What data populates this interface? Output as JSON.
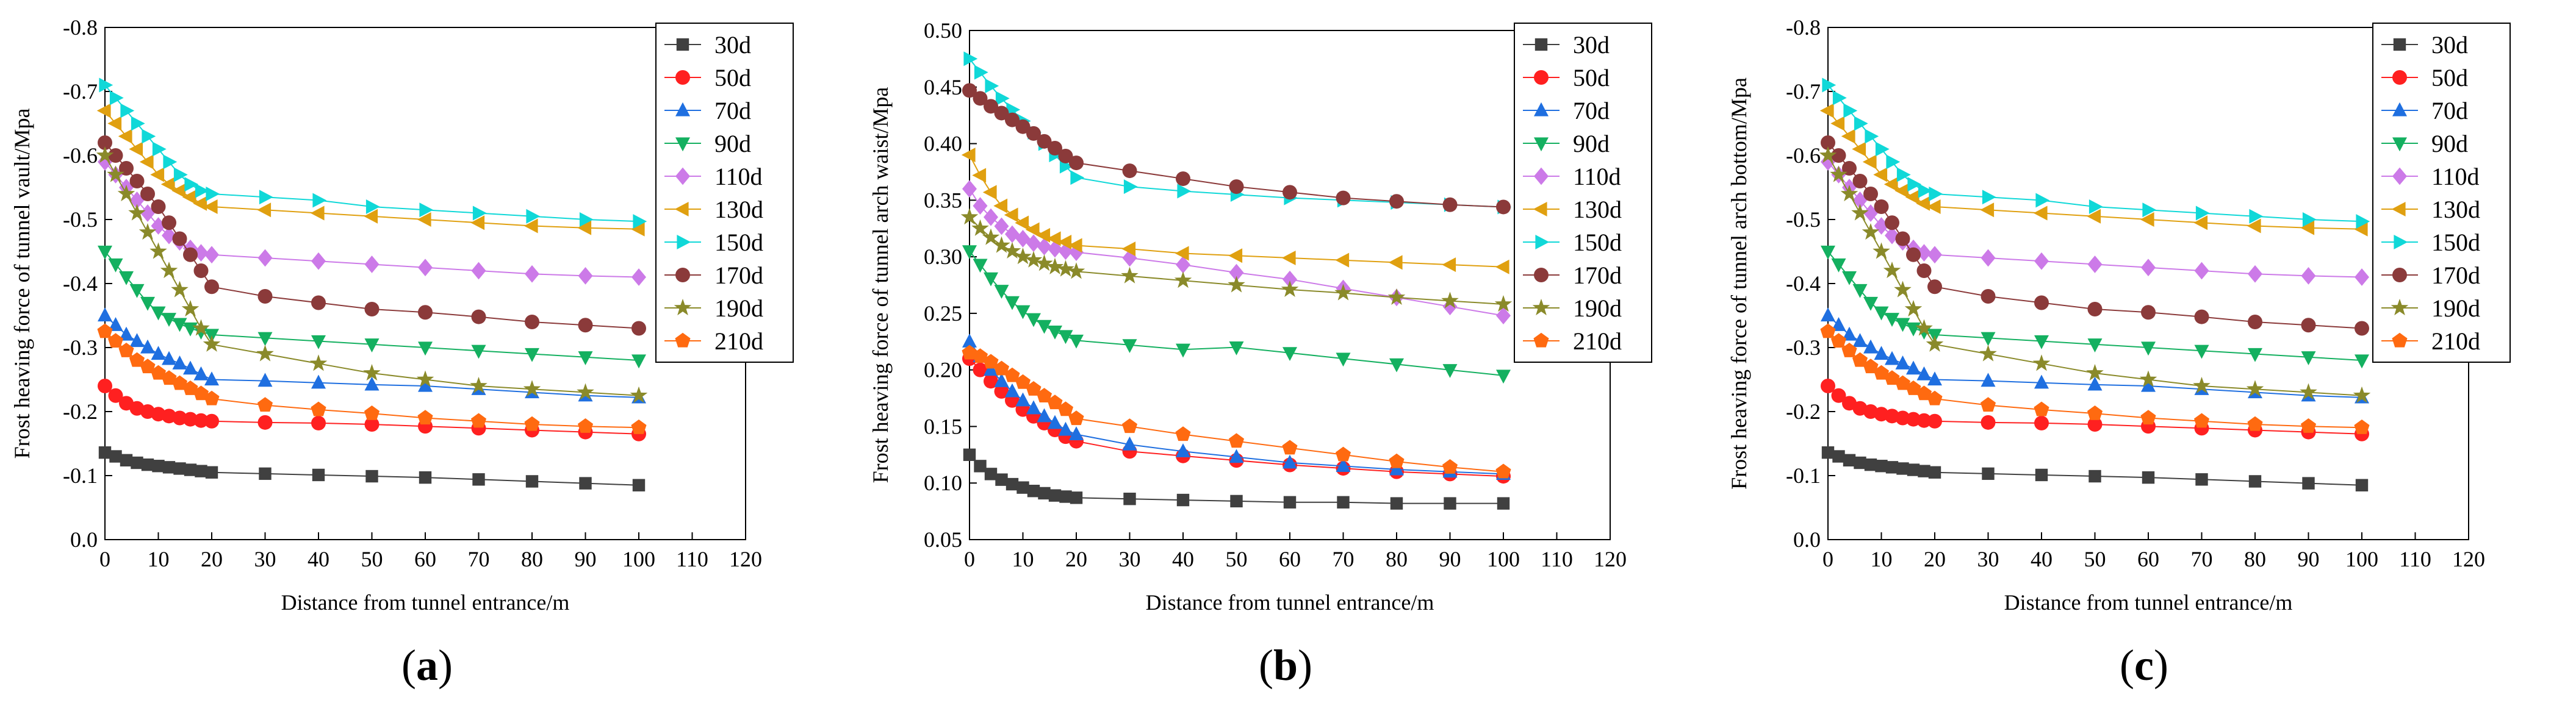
{
  "figure": {
    "panels": [
      {
        "caption_open": "(",
        "caption_letter": "a",
        "caption_close": ")"
      },
      {
        "caption_open": "(",
        "caption_letter": "b",
        "caption_close": ")"
      },
      {
        "caption_open": "(",
        "caption_letter": "c",
        "caption_close": ")"
      }
    ]
  },
  "chart_data": [
    {
      "type": "line",
      "title": "",
      "xlabel": "Distance from tunnel entrance/m",
      "ylabel": "Frost heaving force of tunnel vault/Mpa",
      "xlim": [
        0,
        120
      ],
      "ylim": [
        0,
        -0.8
      ],
      "xticks": [
        0,
        10,
        20,
        30,
        40,
        50,
        60,
        70,
        80,
        90,
        100,
        110,
        120
      ],
      "xtick_labels": [
        "0",
        "10",
        "20",
        "30",
        "40",
        "50",
        "60",
        "70",
        "80",
        "90",
        "100",
        "110",
        "120"
      ],
      "yticks": [
        0,
        -0.1,
        -0.2,
        -0.3,
        -0.4,
        -0.5,
        -0.6,
        -0.7,
        -0.8
      ],
      "ytick_labels": [
        "0.0",
        "-0.1",
        "-0.2",
        "-0.3",
        "-0.4",
        "-0.5",
        "-0.6",
        "-0.7",
        "-0.8"
      ],
      "legend_position": "top-right",
      "x": [
        0,
        2,
        4,
        6,
        8,
        10,
        12,
        14,
        16,
        18,
        20,
        30,
        40,
        50,
        60,
        70,
        80,
        90,
        100
      ],
      "series": [
        {
          "name": "30d",
          "marker": "square",
          "color": "#404040",
          "values": [
            -0.136,
            -0.13,
            -0.124,
            -0.12,
            -0.117,
            -0.115,
            -0.113,
            -0.111,
            -0.109,
            -0.107,
            -0.105,
            -0.103,
            -0.101,
            -0.099,
            -0.097,
            -0.094,
            -0.091,
            -0.088,
            -0.085
          ]
        },
        {
          "name": "50d",
          "marker": "circle",
          "color": "#ff2020",
          "values": [
            -0.24,
            -0.225,
            -0.213,
            -0.205,
            -0.2,
            -0.196,
            -0.193,
            -0.19,
            -0.188,
            -0.186,
            -0.185,
            -0.183,
            -0.182,
            -0.18,
            -0.177,
            -0.174,
            -0.171,
            -0.168,
            -0.165
          ]
        },
        {
          "name": "70d",
          "marker": "triangle-up",
          "color": "#1f6fe0",
          "values": [
            -0.35,
            -0.335,
            -0.32,
            -0.31,
            -0.3,
            -0.29,
            -0.282,
            -0.275,
            -0.267,
            -0.258,
            -0.25,
            -0.248,
            -0.245,
            -0.242,
            -0.24,
            -0.235,
            -0.23,
            -0.225,
            -0.222
          ]
        },
        {
          "name": "90d",
          "marker": "triangle-down",
          "color": "#14b060",
          "values": [
            -0.45,
            -0.43,
            -0.41,
            -0.39,
            -0.37,
            -0.355,
            -0.345,
            -0.337,
            -0.33,
            -0.325,
            -0.32,
            -0.315,
            -0.31,
            -0.305,
            -0.3,
            -0.295,
            -0.29,
            -0.285,
            -0.28
          ]
        },
        {
          "name": "110d",
          "marker": "diamond",
          "color": "#cc7ae8",
          "values": [
            -0.59,
            -0.57,
            -0.55,
            -0.53,
            -0.51,
            -0.49,
            -0.475,
            -0.465,
            -0.455,
            -0.448,
            -0.445,
            -0.44,
            -0.435,
            -0.43,
            -0.425,
            -0.42,
            -0.415,
            -0.412,
            -0.41
          ]
        },
        {
          "name": "130d",
          "marker": "triangle-left",
          "color": "#e0a010",
          "values": [
            -0.67,
            -0.65,
            -0.63,
            -0.61,
            -0.59,
            -0.57,
            -0.555,
            -0.545,
            -0.535,
            -0.525,
            -0.52,
            -0.515,
            -0.51,
            -0.505,
            -0.5,
            -0.495,
            -0.49,
            -0.487,
            -0.485
          ]
        },
        {
          "name": "150d",
          "marker": "triangle-right",
          "color": "#10d8d8",
          "values": [
            -0.71,
            -0.69,
            -0.67,
            -0.65,
            -0.63,
            -0.61,
            -0.59,
            -0.57,
            -0.555,
            -0.545,
            -0.54,
            -0.535,
            -0.53,
            -0.52,
            -0.515,
            -0.51,
            -0.505,
            -0.5,
            -0.497
          ]
        },
        {
          "name": "170d",
          "marker": "circle",
          "color": "#8b3a3a",
          "values": [
            -0.62,
            -0.6,
            -0.58,
            -0.56,
            -0.54,
            -0.52,
            -0.495,
            -0.47,
            -0.445,
            -0.42,
            -0.395,
            -0.38,
            -0.37,
            -0.36,
            -0.355,
            -0.348,
            -0.34,
            -0.335,
            -0.33
          ]
        },
        {
          "name": "190d",
          "marker": "star",
          "color": "#8a8a2a",
          "values": [
            -0.6,
            -0.57,
            -0.54,
            -0.51,
            -0.48,
            -0.45,
            -0.42,
            -0.39,
            -0.36,
            -0.33,
            -0.305,
            -0.29,
            -0.275,
            -0.26,
            -0.25,
            -0.24,
            -0.235,
            -0.23,
            -0.225
          ]
        },
        {
          "name": "210d",
          "marker": "pentagon",
          "color": "#ff6a10",
          "values": [
            -0.325,
            -0.31,
            -0.295,
            -0.28,
            -0.27,
            -0.26,
            -0.252,
            -0.244,
            -0.236,
            -0.228,
            -0.22,
            -0.21,
            -0.203,
            -0.197,
            -0.19,
            -0.185,
            -0.18,
            -0.177,
            -0.175
          ]
        }
      ]
    },
    {
      "type": "line",
      "title": "",
      "xlabel": "Distance from tunnel entrance/m",
      "ylabel": "Frost heaving force of tunnel arch waist/Mpa",
      "xlim": [
        0,
        120
      ],
      "ylim": [
        0.05,
        0.5
      ],
      "xticks": [
        0,
        10,
        20,
        30,
        40,
        50,
        60,
        70,
        80,
        90,
        100,
        110,
        120
      ],
      "xtick_labels": [
        "0",
        "10",
        "20",
        "30",
        "40",
        "50",
        "60",
        "70",
        "80",
        "90",
        "100",
        "110",
        "120"
      ],
      "yticks": [
        0.05,
        0.1,
        0.15,
        0.2,
        0.25,
        0.3,
        0.35,
        0.4,
        0.45,
        0.5
      ],
      "ytick_labels": [
        "0.05",
        "0.10",
        "0.15",
        "0.20",
        "0.25",
        "0.30",
        "0.35",
        "0.40",
        "0.45",
        "0.50"
      ],
      "legend_position": "top-right",
      "x": [
        0,
        2,
        4,
        6,
        8,
        10,
        12,
        14,
        16,
        18,
        20,
        30,
        40,
        50,
        60,
        70,
        80,
        90,
        100
      ],
      "series": [
        {
          "name": "30d",
          "marker": "square",
          "color": "#404040",
          "values": [
            0.125,
            0.115,
            0.108,
            0.103,
            0.099,
            0.096,
            0.093,
            0.091,
            0.089,
            0.088,
            0.087,
            0.086,
            0.085,
            0.084,
            0.083,
            0.083,
            0.082,
            0.082,
            0.082
          ]
        },
        {
          "name": "50d",
          "marker": "circle",
          "color": "#ff2020",
          "values": [
            0.21,
            0.2,
            0.19,
            0.181,
            0.173,
            0.165,
            0.159,
            0.153,
            0.147,
            0.141,
            0.137,
            0.128,
            0.124,
            0.12,
            0.116,
            0.113,
            0.11,
            0.108,
            0.106
          ]
        },
        {
          "name": "70d",
          "marker": "triangle-up",
          "color": "#1f6fe0",
          "values": [
            0.225,
            0.212,
            0.2,
            0.19,
            0.181,
            0.173,
            0.166,
            0.159,
            0.153,
            0.147,
            0.143,
            0.134,
            0.128,
            0.123,
            0.118,
            0.115,
            0.112,
            0.11,
            0.108
          ]
        },
        {
          "name": "90d",
          "marker": "triangle-down",
          "color": "#14b060",
          "values": [
            0.305,
            0.293,
            0.281,
            0.27,
            0.26,
            0.252,
            0.245,
            0.239,
            0.234,
            0.23,
            0.226,
            0.222,
            0.218,
            0.22,
            0.215,
            0.21,
            0.205,
            0.2,
            0.195
          ]
        },
        {
          "name": "110d",
          "marker": "diamond",
          "color": "#cc7ae8",
          "values": [
            0.36,
            0.345,
            0.335,
            0.327,
            0.32,
            0.316,
            0.312,
            0.309,
            0.307,
            0.305,
            0.304,
            0.299,
            0.293,
            0.286,
            0.28,
            0.272,
            0.264,
            0.256,
            0.248
          ]
        },
        {
          "name": "130d",
          "marker": "triangle-left",
          "color": "#e0a010",
          "values": [
            0.39,
            0.372,
            0.357,
            0.345,
            0.337,
            0.33,
            0.324,
            0.319,
            0.316,
            0.313,
            0.31,
            0.307,
            0.303,
            0.301,
            0.299,
            0.297,
            0.295,
            0.293,
            0.291
          ]
        },
        {
          "name": "150d",
          "marker": "triangle-right",
          "color": "#10d8d8",
          "values": [
            0.475,
            0.463,
            0.451,
            0.44,
            0.43,
            0.42,
            0.41,
            0.4,
            0.39,
            0.38,
            0.37,
            0.362,
            0.358,
            0.355,
            0.352,
            0.35,
            0.348,
            0.346,
            0.344
          ]
        },
        {
          "name": "170d",
          "marker": "circle",
          "color": "#8b3a3a",
          "values": [
            0.447,
            0.44,
            0.433,
            0.427,
            0.421,
            0.415,
            0.409,
            0.402,
            0.396,
            0.389,
            0.383,
            0.376,
            0.369,
            0.362,
            0.357,
            0.352,
            0.349,
            0.346,
            0.344
          ]
        },
        {
          "name": "190d",
          "marker": "star",
          "color": "#8a8a2a",
          "values": [
            0.335,
            0.325,
            0.317,
            0.31,
            0.305,
            0.3,
            0.297,
            0.294,
            0.291,
            0.289,
            0.287,
            0.283,
            0.279,
            0.275,
            0.271,
            0.268,
            0.264,
            0.261,
            0.258
          ]
        },
        {
          "name": "210d",
          "marker": "pentagon",
          "color": "#ff6a10",
          "values": [
            0.215,
            0.212,
            0.207,
            0.201,
            0.195,
            0.189,
            0.183,
            0.177,
            0.171,
            0.165,
            0.157,
            0.15,
            0.143,
            0.137,
            0.131,
            0.125,
            0.119,
            0.114,
            0.11
          ]
        }
      ]
    },
    {
      "type": "line",
      "title": "",
      "xlabel": "Distance from tunnel entrance/m",
      "ylabel": "Frost heaving force of tunnel arch bottom/Mpa",
      "xlim": [
        0,
        120
      ],
      "ylim": [
        0,
        -0.8
      ],
      "xticks": [
        0,
        10,
        20,
        30,
        40,
        50,
        60,
        70,
        80,
        90,
        100,
        110,
        120
      ],
      "xtick_labels": [
        "0",
        "10",
        "20",
        "30",
        "40",
        "50",
        "60",
        "70",
        "80",
        "90",
        "100",
        "110",
        "120"
      ],
      "yticks": [
        0,
        -0.1,
        -0.2,
        -0.3,
        -0.4,
        -0.5,
        -0.6,
        -0.7,
        -0.8
      ],
      "ytick_labels": [
        "0.0",
        "-0.1",
        "-0.2",
        "-0.3",
        "-0.4",
        "-0.5",
        "-0.6",
        "-0.7",
        "-0.8"
      ],
      "legend_position": "top-right",
      "x": [
        0,
        2,
        4,
        6,
        8,
        10,
        12,
        14,
        16,
        18,
        20,
        30,
        40,
        50,
        60,
        70,
        80,
        90,
        100
      ],
      "series": [
        {
          "name": "30d",
          "marker": "square",
          "color": "#404040",
          "values": [
            -0.136,
            -0.13,
            -0.124,
            -0.12,
            -0.117,
            -0.115,
            -0.113,
            -0.111,
            -0.109,
            -0.107,
            -0.105,
            -0.103,
            -0.101,
            -0.099,
            -0.097,
            -0.094,
            -0.091,
            -0.088,
            -0.085
          ]
        },
        {
          "name": "50d",
          "marker": "circle",
          "color": "#ff2020",
          "values": [
            -0.24,
            -0.225,
            -0.213,
            -0.205,
            -0.2,
            -0.196,
            -0.193,
            -0.19,
            -0.188,
            -0.186,
            -0.185,
            -0.183,
            -0.182,
            -0.18,
            -0.177,
            -0.174,
            -0.171,
            -0.168,
            -0.165
          ]
        },
        {
          "name": "70d",
          "marker": "triangle-up",
          "color": "#1f6fe0",
          "values": [
            -0.35,
            -0.335,
            -0.32,
            -0.31,
            -0.3,
            -0.29,
            -0.282,
            -0.275,
            -0.267,
            -0.258,
            -0.25,
            -0.248,
            -0.245,
            -0.242,
            -0.24,
            -0.235,
            -0.23,
            -0.225,
            -0.222
          ]
        },
        {
          "name": "90d",
          "marker": "triangle-down",
          "color": "#14b060",
          "values": [
            -0.45,
            -0.43,
            -0.41,
            -0.39,
            -0.37,
            -0.355,
            -0.345,
            -0.337,
            -0.33,
            -0.325,
            -0.32,
            -0.315,
            -0.31,
            -0.305,
            -0.3,
            -0.295,
            -0.29,
            -0.285,
            -0.28
          ]
        },
        {
          "name": "110d",
          "marker": "diamond",
          "color": "#cc7ae8",
          "values": [
            -0.59,
            -0.57,
            -0.55,
            -0.53,
            -0.51,
            -0.49,
            -0.475,
            -0.465,
            -0.455,
            -0.448,
            -0.445,
            -0.44,
            -0.435,
            -0.43,
            -0.425,
            -0.42,
            -0.415,
            -0.412,
            -0.41
          ]
        },
        {
          "name": "130d",
          "marker": "triangle-left",
          "color": "#e0a010",
          "values": [
            -0.67,
            -0.65,
            -0.63,
            -0.61,
            -0.59,
            -0.57,
            -0.555,
            -0.545,
            -0.535,
            -0.525,
            -0.52,
            -0.515,
            -0.51,
            -0.505,
            -0.5,
            -0.495,
            -0.49,
            -0.487,
            -0.485
          ]
        },
        {
          "name": "150d",
          "marker": "triangle-right",
          "color": "#10d8d8",
          "values": [
            -0.71,
            -0.69,
            -0.67,
            -0.65,
            -0.63,
            -0.61,
            -0.59,
            -0.57,
            -0.555,
            -0.545,
            -0.54,
            -0.535,
            -0.53,
            -0.52,
            -0.515,
            -0.51,
            -0.505,
            -0.5,
            -0.497
          ]
        },
        {
          "name": "170d",
          "marker": "circle",
          "color": "#8b3a3a",
          "values": [
            -0.62,
            -0.6,
            -0.58,
            -0.56,
            -0.54,
            -0.52,
            -0.495,
            -0.47,
            -0.445,
            -0.42,
            -0.395,
            -0.38,
            -0.37,
            -0.36,
            -0.355,
            -0.348,
            -0.34,
            -0.335,
            -0.33
          ]
        },
        {
          "name": "190d",
          "marker": "star",
          "color": "#8a8a2a",
          "values": [
            -0.6,
            -0.57,
            -0.54,
            -0.51,
            -0.48,
            -0.45,
            -0.42,
            -0.39,
            -0.36,
            -0.33,
            -0.305,
            -0.29,
            -0.275,
            -0.26,
            -0.25,
            -0.24,
            -0.235,
            -0.23,
            -0.225
          ]
        },
        {
          "name": "210d",
          "marker": "pentagon",
          "color": "#ff6a10",
          "values": [
            -0.325,
            -0.31,
            -0.295,
            -0.28,
            -0.27,
            -0.26,
            -0.252,
            -0.244,
            -0.236,
            -0.228,
            -0.22,
            -0.21,
            -0.203,
            -0.197,
            -0.19,
            -0.185,
            -0.18,
            -0.177,
            -0.175
          ]
        }
      ]
    }
  ]
}
